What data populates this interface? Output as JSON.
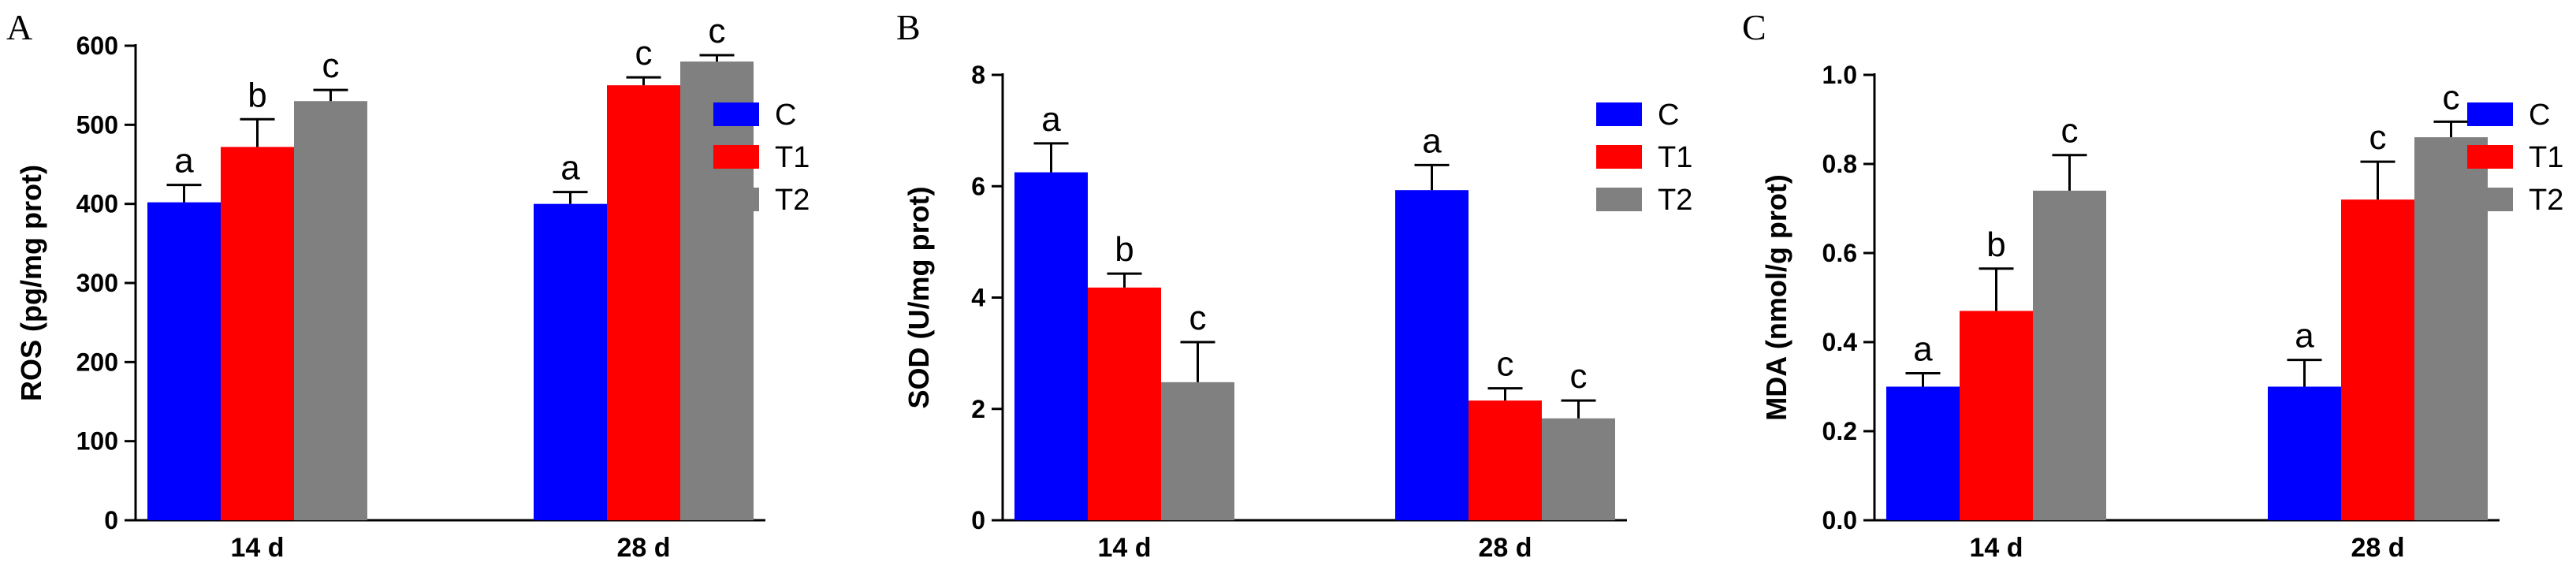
{
  "colors": {
    "C": "#0000ff",
    "T1": "#ff0000",
    "T2": "#808080"
  },
  "chart_data": [
    {
      "panel": "A",
      "type": "bar",
      "categories": [
        "14 d",
        "28 d"
      ],
      "ylabel": "ROS (pg/mg prot)",
      "ylim": [
        0,
        600
      ],
      "yticks": [
        0,
        100,
        200,
        300,
        400,
        500,
        600
      ],
      "legend_position": "right",
      "series": [
        {
          "name": "C",
          "values": [
            402,
            400
          ],
          "errors": [
            22,
            15
          ],
          "labels": [
            "a",
            "a"
          ]
        },
        {
          "name": "T1",
          "values": [
            472,
            550
          ],
          "errors": [
            35,
            10
          ],
          "labels": [
            "b",
            "c"
          ]
        },
        {
          "name": "T2",
          "values": [
            530,
            580
          ],
          "errors": [
            14,
            8
          ],
          "labels": [
            "c",
            "c"
          ]
        }
      ]
    },
    {
      "panel": "B",
      "type": "bar",
      "categories": [
        "14 d",
        "28 d"
      ],
      "ylabel": "SOD (U/mg prot)",
      "ylim": [
        0,
        8
      ],
      "yticks": [
        0,
        2,
        4,
        6,
        8
      ],
      "legend_position": "right",
      "series": [
        {
          "name": "C",
          "values": [
            6.25,
            5.93
          ],
          "errors": [
            0.52,
            0.45
          ],
          "labels": [
            "a",
            "a"
          ]
        },
        {
          "name": "T1",
          "values": [
            4.18,
            2.15
          ],
          "errors": [
            0.25,
            0.22
          ],
          "labels": [
            "b",
            "c"
          ]
        },
        {
          "name": "T2",
          "values": [
            2.48,
            1.83
          ],
          "errors": [
            0.72,
            0.32
          ],
          "labels": [
            "c",
            "c"
          ]
        }
      ]
    },
    {
      "panel": "C",
      "type": "bar",
      "categories": [
        "14 d",
        "28 d"
      ],
      "ylabel": "MDA (nmol/g prot)",
      "ylim": [
        0,
        1.0
      ],
      "yticks": [
        0.0,
        0.2,
        0.4,
        0.6,
        0.8,
        1.0
      ],
      "tick_format": "0.0",
      "legend_position": "right",
      "series": [
        {
          "name": "C",
          "values": [
            0.3,
            0.3
          ],
          "errors": [
            0.03,
            0.06
          ],
          "labels": [
            "a",
            "a"
          ]
        },
        {
          "name": "T1",
          "values": [
            0.47,
            0.72
          ],
          "errors": [
            0.095,
            0.085
          ],
          "labels": [
            "b",
            "c"
          ]
        },
        {
          "name": "T2",
          "values": [
            0.74,
            0.86
          ],
          "errors": [
            0.08,
            0.035
          ],
          "labels": [
            "c",
            "c"
          ]
        }
      ]
    }
  ]
}
